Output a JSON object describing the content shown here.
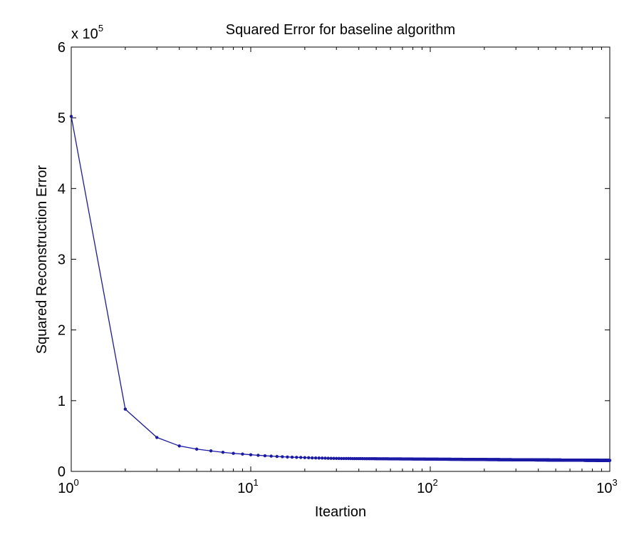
{
  "chart_data": {
    "type": "line",
    "title": "Squared Error for baseline algorithm",
    "xlabel": "Iteartion",
    "ylabel": "Squared Reconstruction Error",
    "x_scale": "log",
    "xlim": [
      1,
      1000
    ],
    "ylim": [
      0,
      600000
    ],
    "y_multiplier": {
      "base": "x 10",
      "exponent": "5"
    },
    "x_ticks": [
      {
        "base": "10",
        "exp": "0"
      },
      {
        "base": "10",
        "exp": "1"
      },
      {
        "base": "10",
        "exp": "2"
      },
      {
        "base": "10",
        "exp": "3"
      }
    ],
    "y_ticks": [
      "0",
      "1",
      "2",
      "3",
      "4",
      "5",
      "6"
    ],
    "grid": false,
    "color": "#1a1aa6",
    "series": [
      {
        "x_range": [
          1,
          1000
        ],
        "values": [
          502000,
          88000,
          48000,
          36000,
          31500,
          29000,
          27000,
          25500,
          24500,
          23500,
          22800,
          22100,
          21600,
          21100,
          20700,
          20400,
          20100,
          19900,
          19700,
          19500,
          19300,
          19100,
          19000,
          18900,
          18800,
          18700,
          18600,
          18500,
          18400,
          18300
        ],
        "tail_value": 15500
      }
    ]
  }
}
